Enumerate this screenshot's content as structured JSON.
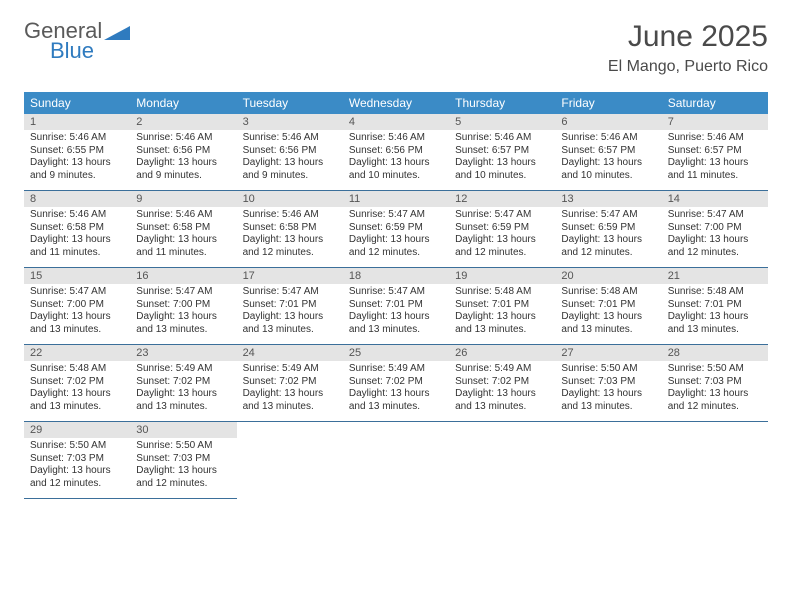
{
  "logo": {
    "line1": "General",
    "line2": "Blue",
    "triangle_color": "#2f7bbf",
    "text_gray": "#5a5a5a"
  },
  "header": {
    "month": "June 2025",
    "location": "El Mango, Puerto Rico"
  },
  "colors": {
    "header_bg": "#3b8bc6",
    "header_text": "#ffffff",
    "daynum_bg": "#e4e4e4",
    "row_border": "#3b6f9a",
    "body_text": "#333333",
    "title_text": "#4a4a4a"
  },
  "weekdays": [
    "Sunday",
    "Monday",
    "Tuesday",
    "Wednesday",
    "Thursday",
    "Friday",
    "Saturday"
  ],
  "layout": {
    "rows": 5,
    "cols": 7,
    "total_cells": 35
  },
  "days": [
    {
      "n": 1,
      "sunrise": "5:46 AM",
      "sunset": "6:55 PM",
      "daylight": "13 hours and 9 minutes."
    },
    {
      "n": 2,
      "sunrise": "5:46 AM",
      "sunset": "6:56 PM",
      "daylight": "13 hours and 9 minutes."
    },
    {
      "n": 3,
      "sunrise": "5:46 AM",
      "sunset": "6:56 PM",
      "daylight": "13 hours and 9 minutes."
    },
    {
      "n": 4,
      "sunrise": "5:46 AM",
      "sunset": "6:56 PM",
      "daylight": "13 hours and 10 minutes."
    },
    {
      "n": 5,
      "sunrise": "5:46 AM",
      "sunset": "6:57 PM",
      "daylight": "13 hours and 10 minutes."
    },
    {
      "n": 6,
      "sunrise": "5:46 AM",
      "sunset": "6:57 PM",
      "daylight": "13 hours and 10 minutes."
    },
    {
      "n": 7,
      "sunrise": "5:46 AM",
      "sunset": "6:57 PM",
      "daylight": "13 hours and 11 minutes."
    },
    {
      "n": 8,
      "sunrise": "5:46 AM",
      "sunset": "6:58 PM",
      "daylight": "13 hours and 11 minutes."
    },
    {
      "n": 9,
      "sunrise": "5:46 AM",
      "sunset": "6:58 PM",
      "daylight": "13 hours and 11 minutes."
    },
    {
      "n": 10,
      "sunrise": "5:46 AM",
      "sunset": "6:58 PM",
      "daylight": "13 hours and 12 minutes."
    },
    {
      "n": 11,
      "sunrise": "5:47 AM",
      "sunset": "6:59 PM",
      "daylight": "13 hours and 12 minutes."
    },
    {
      "n": 12,
      "sunrise": "5:47 AM",
      "sunset": "6:59 PM",
      "daylight": "13 hours and 12 minutes."
    },
    {
      "n": 13,
      "sunrise": "5:47 AM",
      "sunset": "6:59 PM",
      "daylight": "13 hours and 12 minutes."
    },
    {
      "n": 14,
      "sunrise": "5:47 AM",
      "sunset": "7:00 PM",
      "daylight": "13 hours and 12 minutes."
    },
    {
      "n": 15,
      "sunrise": "5:47 AM",
      "sunset": "7:00 PM",
      "daylight": "13 hours and 13 minutes."
    },
    {
      "n": 16,
      "sunrise": "5:47 AM",
      "sunset": "7:00 PM",
      "daylight": "13 hours and 13 minutes."
    },
    {
      "n": 17,
      "sunrise": "5:47 AM",
      "sunset": "7:01 PM",
      "daylight": "13 hours and 13 minutes."
    },
    {
      "n": 18,
      "sunrise": "5:47 AM",
      "sunset": "7:01 PM",
      "daylight": "13 hours and 13 minutes."
    },
    {
      "n": 19,
      "sunrise": "5:48 AM",
      "sunset": "7:01 PM",
      "daylight": "13 hours and 13 minutes."
    },
    {
      "n": 20,
      "sunrise": "5:48 AM",
      "sunset": "7:01 PM",
      "daylight": "13 hours and 13 minutes."
    },
    {
      "n": 21,
      "sunrise": "5:48 AM",
      "sunset": "7:01 PM",
      "daylight": "13 hours and 13 minutes."
    },
    {
      "n": 22,
      "sunrise": "5:48 AM",
      "sunset": "7:02 PM",
      "daylight": "13 hours and 13 minutes."
    },
    {
      "n": 23,
      "sunrise": "5:49 AM",
      "sunset": "7:02 PM",
      "daylight": "13 hours and 13 minutes."
    },
    {
      "n": 24,
      "sunrise": "5:49 AM",
      "sunset": "7:02 PM",
      "daylight": "13 hours and 13 minutes."
    },
    {
      "n": 25,
      "sunrise": "5:49 AM",
      "sunset": "7:02 PM",
      "daylight": "13 hours and 13 minutes."
    },
    {
      "n": 26,
      "sunrise": "5:49 AM",
      "sunset": "7:02 PM",
      "daylight": "13 hours and 13 minutes."
    },
    {
      "n": 27,
      "sunrise": "5:50 AM",
      "sunset": "7:03 PM",
      "daylight": "13 hours and 13 minutes."
    },
    {
      "n": 28,
      "sunrise": "5:50 AM",
      "sunset": "7:03 PM",
      "daylight": "13 hours and 12 minutes."
    },
    {
      "n": 29,
      "sunrise": "5:50 AM",
      "sunset": "7:03 PM",
      "daylight": "13 hours and 12 minutes."
    },
    {
      "n": 30,
      "sunrise": "5:50 AM",
      "sunset": "7:03 PM",
      "daylight": "13 hours and 12 minutes."
    }
  ],
  "labels": {
    "sunrise": "Sunrise:",
    "sunset": "Sunset:",
    "daylight": "Daylight:"
  }
}
